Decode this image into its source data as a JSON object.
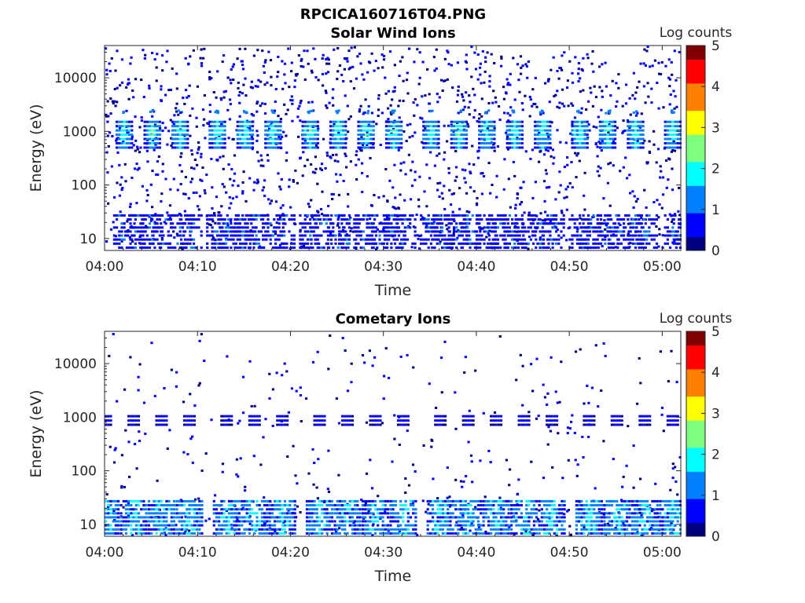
{
  "figure": {
    "title": "RPCICA160716T04.PNG"
  },
  "colorscale": [
    "#00007f",
    "#0000ff",
    "#007fff",
    "#00ffff",
    "#7fff7f",
    "#ffff00",
    "#ff7f00",
    "#ff0000",
    "#7f0000"
  ],
  "chart_data": [
    {
      "type": "heatmap",
      "title": "Solar Wind Ions",
      "xlabel": "Time",
      "ylabel": "Energy (eV)",
      "x_tick_labels": [
        "04:00",
        "04:10",
        "04:20",
        "04:30",
        "04:40",
        "04:50",
        "05:00"
      ],
      "y_tick_labels": [
        "10",
        "100",
        "1000",
        "10000"
      ],
      "y_scale": "log",
      "ylim": [
        6,
        40000
      ],
      "xlim": [
        "04:00",
        "05:02"
      ],
      "colorbar": {
        "label": "Log counts",
        "ticks": [
          "0",
          "1",
          "2",
          "3",
          "4",
          "5"
        ],
        "range": [
          0,
          5
        ]
      },
      "features": {
        "solar_wind_peak_energy_eV": 1000,
        "solar_wind_peak_log_counts": 2.5,
        "pulse_times": [
          "04:02",
          "04:05",
          "04:08",
          "04:12",
          "04:15",
          "04:18",
          "04:22",
          "04:25",
          "04:28",
          "04:31",
          "04:35",
          "04:38",
          "04:41",
          "04:44",
          "04:47",
          "04:51",
          "04:54",
          "04:57",
          "05:01"
        ],
        "low_energy_band_eV": [
          6,
          30
        ],
        "low_energy_log_counts": 1.0
      }
    },
    {
      "type": "heatmap",
      "title": "Cometary Ions",
      "xlabel": "Time",
      "ylabel": "Energy (eV)",
      "x_tick_labels": [
        "04:00",
        "04:10",
        "04:20",
        "04:30",
        "04:40",
        "04:50",
        "05:00"
      ],
      "y_tick_labels": [
        "10",
        "100",
        "1000",
        "10000"
      ],
      "y_scale": "log",
      "ylim": [
        6,
        40000
      ],
      "xlim": [
        "04:00",
        "05:02"
      ],
      "colorbar": {
        "label": "Log counts",
        "ticks": [
          "0",
          "1",
          "2",
          "3",
          "4",
          "5"
        ],
        "range": [
          0,
          5
        ]
      },
      "features": {
        "solar_wind_peak_energy_eV": 1000,
        "solar_wind_peak_log_counts": 0.8,
        "pulse_times": [
          "04:00",
          "04:03",
          "04:06",
          "04:09",
          "04:13",
          "04:16",
          "04:19",
          "04:23",
          "04:26",
          "04:29",
          "04:32",
          "04:36",
          "04:39",
          "04:42",
          "04:45",
          "04:48",
          "04:52",
          "04:55",
          "04:58",
          "05:01"
        ],
        "low_energy_band_eV": [
          6,
          30
        ],
        "low_energy_log_counts": 1.8
      }
    }
  ]
}
